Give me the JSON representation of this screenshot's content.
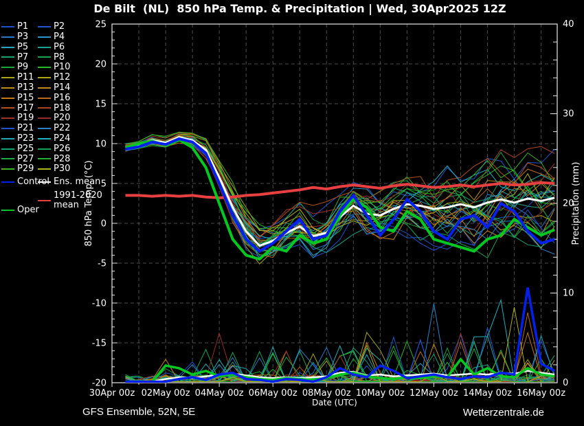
{
  "title": "De Bilt  (NL)  850 hPa Temp. & Precipitation | Wed, 30Apr2025 12Z",
  "footer": {
    "left": "GFS Ensemble, 52N, 5E",
    "right": "Wetterzentrale.de"
  },
  "legend": {
    "members": [
      {
        "label": "P1",
        "color": "#2050d0"
      },
      {
        "label": "P2",
        "color": "#2058cc"
      },
      {
        "label": "P3",
        "color": "#2878c8"
      },
      {
        "label": "P4",
        "color": "#2896c4"
      },
      {
        "label": "P5",
        "color": "#20aac0"
      },
      {
        "label": "P6",
        "color": "#14a68a"
      },
      {
        "label": "P7",
        "color": "#12a474"
      },
      {
        "label": "P8",
        "color": "#16a44e"
      },
      {
        "label": "P9",
        "color": "#18a838"
      },
      {
        "label": "P10",
        "color": "#22bc26"
      },
      {
        "label": "P11",
        "color": "#a8a414"
      },
      {
        "label": "P12",
        "color": "#b0a418"
      },
      {
        "label": "P13",
        "color": "#c08c14"
      },
      {
        "label": "P14",
        "color": "#c4861c"
      },
      {
        "label": "P15",
        "color": "#c47818"
      },
      {
        "label": "P16",
        "color": "#bc661c"
      },
      {
        "label": "P17",
        "color": "#b45018"
      },
      {
        "label": "P18",
        "color": "#aa4420"
      },
      {
        "label": "P19",
        "color": "#a03424"
      },
      {
        "label": "P20",
        "color": "#982c28"
      },
      {
        "label": "P21",
        "color": "#2055cc"
      },
      {
        "label": "P22",
        "color": "#2884c8"
      },
      {
        "label": "P23",
        "color": "#20a8b0"
      },
      {
        "label": "P24",
        "color": "#1fb2bc"
      },
      {
        "label": "P25",
        "color": "#12a478"
      },
      {
        "label": "P26",
        "color": "#16a258"
      },
      {
        "label": "P27",
        "color": "#1cac42"
      },
      {
        "label": "P28",
        "color": "#20b22c"
      },
      {
        "label": "P29",
        "color": "#3cb41e"
      },
      {
        "label": "P30",
        "color": "#b4b414"
      }
    ],
    "control": {
      "label": "Control",
      "color": "#0020ee"
    },
    "ens_mean": {
      "label": "Ens. mean",
      "color": "#ffffff"
    },
    "clim_mean": {
      "label": "1991-2020 mean",
      "color": "#e84040"
    },
    "oper": {
      "label": "Oper",
      "color": "#00c820"
    }
  },
  "chart_data": {
    "type": "line",
    "title": "De Bilt (NL) 850 hPa Temp. & Precipitation",
    "run_label": "Wed, 30Apr2025 12Z",
    "grid": true,
    "legend_position": "left",
    "background": "#000000",
    "grid_color": "#4d4d4d",
    "frame_color": "#e8e8e8",
    "x_axis": {
      "label": "Date (UTC)",
      "tick_labels": [
        "30Apr 00z",
        "02May 00z",
        "04May 00z",
        "06May 00z",
        "08May 00z",
        "10May 00z",
        "12May 00z",
        "14May 00z",
        "16May 00z"
      ],
      "tick_step_days": 2,
      "grid_step_days": 1,
      "span_days": 16.6
    },
    "temp_axis": {
      "label": "850 hPa Temp. (°C)",
      "min": -20,
      "max": 25,
      "tick_step": 5,
      "minor_step": 1
    },
    "precip_axis": {
      "label": "Precipitation (mm)",
      "min": 0,
      "max": 40,
      "tick_step": 10,
      "minor_step": 2
    },
    "time": {
      "start_offset_days": 0.5,
      "step_days": 0.5,
      "points": 33
    },
    "series": {
      "ens_mean_temp": [
        9.5,
        9.8,
        10.4,
        10.1,
        10.8,
        10.4,
        9.2,
        5.8,
        2.0,
        -1.0,
        -2.8,
        -2.2,
        -1.2,
        -0.4,
        -1.6,
        -1.2,
        0.8,
        2.2,
        1.2,
        1.0,
        1.8,
        2.4,
        2.2,
        1.8,
        2.0,
        2.4,
        2.0,
        2.6,
        3.0,
        2.6,
        3.1,
        2.8,
        3.2
      ],
      "control_temp": [
        9.3,
        9.6,
        10.2,
        9.9,
        10.6,
        10.2,
        8.8,
        5.0,
        1.0,
        -2.0,
        -3.5,
        -2.5,
        -1.0,
        0.5,
        -2.0,
        -1.5,
        1.5,
        3.5,
        1.0,
        -1.5,
        0.5,
        3.0,
        1.5,
        -1.0,
        -2.0,
        0.5,
        1.0,
        -0.5,
        2.5,
        1.5,
        -1.0,
        -2.5,
        -2.0
      ],
      "oper_temp": [
        9.5,
        10.0,
        10.3,
        9.8,
        10.5,
        9.5,
        7.0,
        2.5,
        -2.0,
        -4.0,
        -4.5,
        -3.0,
        -3.5,
        -1.5,
        -2.5,
        -2.0,
        1.0,
        3.0,
        2.0,
        -0.5,
        -1.0,
        1.5,
        0.5,
        -2.0,
        -2.5,
        -3.0,
        -3.5,
        -2.0,
        -1.5,
        0.5,
        -0.5,
        -1.5,
        -0.8
      ],
      "clim_mean_temp": [
        3.5,
        3.5,
        3.4,
        3.5,
        3.4,
        3.5,
        3.3,
        3.2,
        3.3,
        3.5,
        3.6,
        3.8,
        4.0,
        4.2,
        4.5,
        4.3,
        4.6,
        4.8,
        4.6,
        4.4,
        4.7,
        4.9,
        4.7,
        4.5,
        4.6,
        4.8,
        4.6,
        4.8,
        5.0,
        4.8,
        4.9,
        5.1,
        5.0
      ],
      "ens_mean_precip": [
        0,
        0,
        0,
        0.3,
        0.5,
        0.4,
        0.6,
        0.8,
        0.9,
        0.7,
        0.5,
        0.4,
        0.5,
        0.4,
        0.5,
        0.6,
        1.0,
        1.1,
        0.7,
        0.8,
        0.6,
        0.7,
        0.8,
        0.9,
        0.7,
        0.8,
        0.9,
        0.8,
        1.0,
        0.9,
        1.2,
        1.0,
        0.8
      ],
      "control_precip": [
        0,
        0,
        0,
        0,
        0.3,
        0.5,
        0.2,
        0.8,
        1.0,
        0.3,
        0.2,
        0,
        0.3,
        0.2,
        0,
        0.5,
        1.5,
        0.8,
        0.5,
        1.8,
        1.2,
        0.4,
        0.6,
        0.8,
        0.5,
        0.3,
        0.6,
        0.5,
        1.0,
        0.8,
        10.5,
        2.0,
        1.2
      ],
      "oper_precip": [
        0,
        0,
        0,
        1.8,
        1.5,
        0.8,
        1.2,
        0.6,
        0.8,
        0.5,
        0.3,
        0.2,
        0.4,
        0.3,
        0.2,
        0.4,
        0.8,
        1.0,
        0.6,
        0.4,
        0.3,
        0.5,
        0.4,
        0.6,
        0.5,
        2.5,
        0.8,
        1.5,
        0.6,
        0.5,
        1.5,
        0.8,
        0.6
      ]
    },
    "ensemble_synthesis": {
      "seed": 7,
      "member_count": 30,
      "temp_spread": [
        0.4,
        0.4,
        0.5,
        0.5,
        0.6,
        0.7,
        1.0,
        1.5,
        2.0,
        2.2,
        2.2,
        2.2,
        2.2,
        2.3,
        2.4,
        2.5,
        2.6,
        2.8,
        3.0,
        3.2,
        3.3,
        3.5,
        3.6,
        3.8,
        4.0,
        4.0,
        4.2,
        4.3,
        4.5,
        4.5,
        4.6,
        4.8,
        5.0
      ],
      "precip_spike_amp": [
        0,
        0,
        0,
        2,
        2.5,
        2.5,
        3,
        3,
        3.5,
        3.5,
        3.5,
        3.5,
        3.5,
        4,
        4,
        4,
        4.5,
        4.5,
        4.5,
        4.5,
        5,
        5,
        5,
        5,
        5.5,
        5.5,
        5.5,
        6,
        6,
        6,
        6,
        6,
        5
      ],
      "precip_highlight_spikes": [
        {
          "member": 13,
          "t": 3,
          "mm": 2.5
        },
        {
          "member": 1,
          "t": 5,
          "mm": 2.2
        },
        {
          "member": 7,
          "t": 6,
          "mm": 3.6
        },
        {
          "member": 19,
          "t": 7,
          "mm": 5.4
        },
        {
          "member": 23,
          "t": 16,
          "mm": 4.0
        },
        {
          "member": 5,
          "t": 17,
          "mm": 3.5
        },
        {
          "member": 10,
          "t": 18,
          "mm": 5.5
        },
        {
          "member": 9,
          "t": 21,
          "mm": 4.5
        },
        {
          "member": 21,
          "t": 23,
          "mm": 8.7
        },
        {
          "member": 23,
          "t": 26,
          "mm": 5.0
        },
        {
          "member": 22,
          "t": 27,
          "mm": 5.1
        },
        {
          "member": 23,
          "t": 28,
          "mm": 9.1
        },
        {
          "member": 29,
          "t": 29,
          "mm": 8.3
        },
        {
          "member": 15,
          "t": 30,
          "mm": 7.7
        },
        {
          "member": 11,
          "t": 32,
          "mm": 2.4
        }
      ]
    }
  }
}
